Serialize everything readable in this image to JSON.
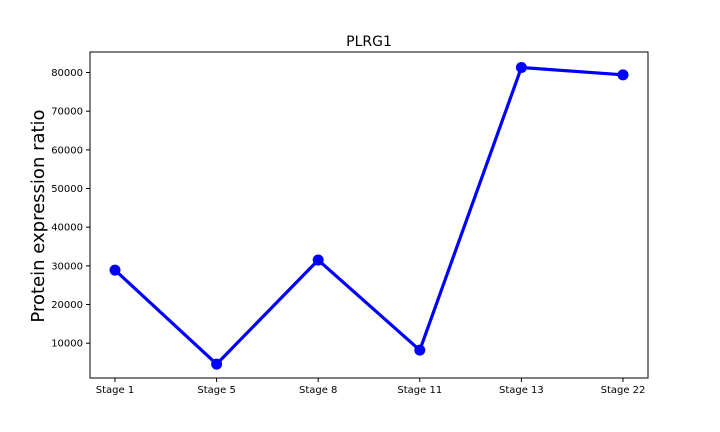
{
  "chart_data": {
    "type": "line",
    "title": "PLRG1",
    "xlabel": "",
    "ylabel": "Protein expression ratio",
    "categories": [
      "Stage 1",
      "Stage 5",
      "Stage 8",
      "Stage 11",
      "Stage 13",
      "Stage 22"
    ],
    "series": [
      {
        "values": [
          28900,
          4600,
          31500,
          8200,
          81300,
          79400
        ],
        "color": "#0000ff"
      }
    ],
    "yticks": [
      10000,
      20000,
      30000,
      40000,
      50000,
      60000,
      70000,
      80000
    ],
    "ytick_labels": [
      "10000",
      "20000",
      "30000",
      "40000",
      "50000",
      "60000",
      "70000",
      "80000"
    ],
    "ylim": [
      1000,
      85300
    ],
    "grid": false,
    "legend": "none"
  }
}
